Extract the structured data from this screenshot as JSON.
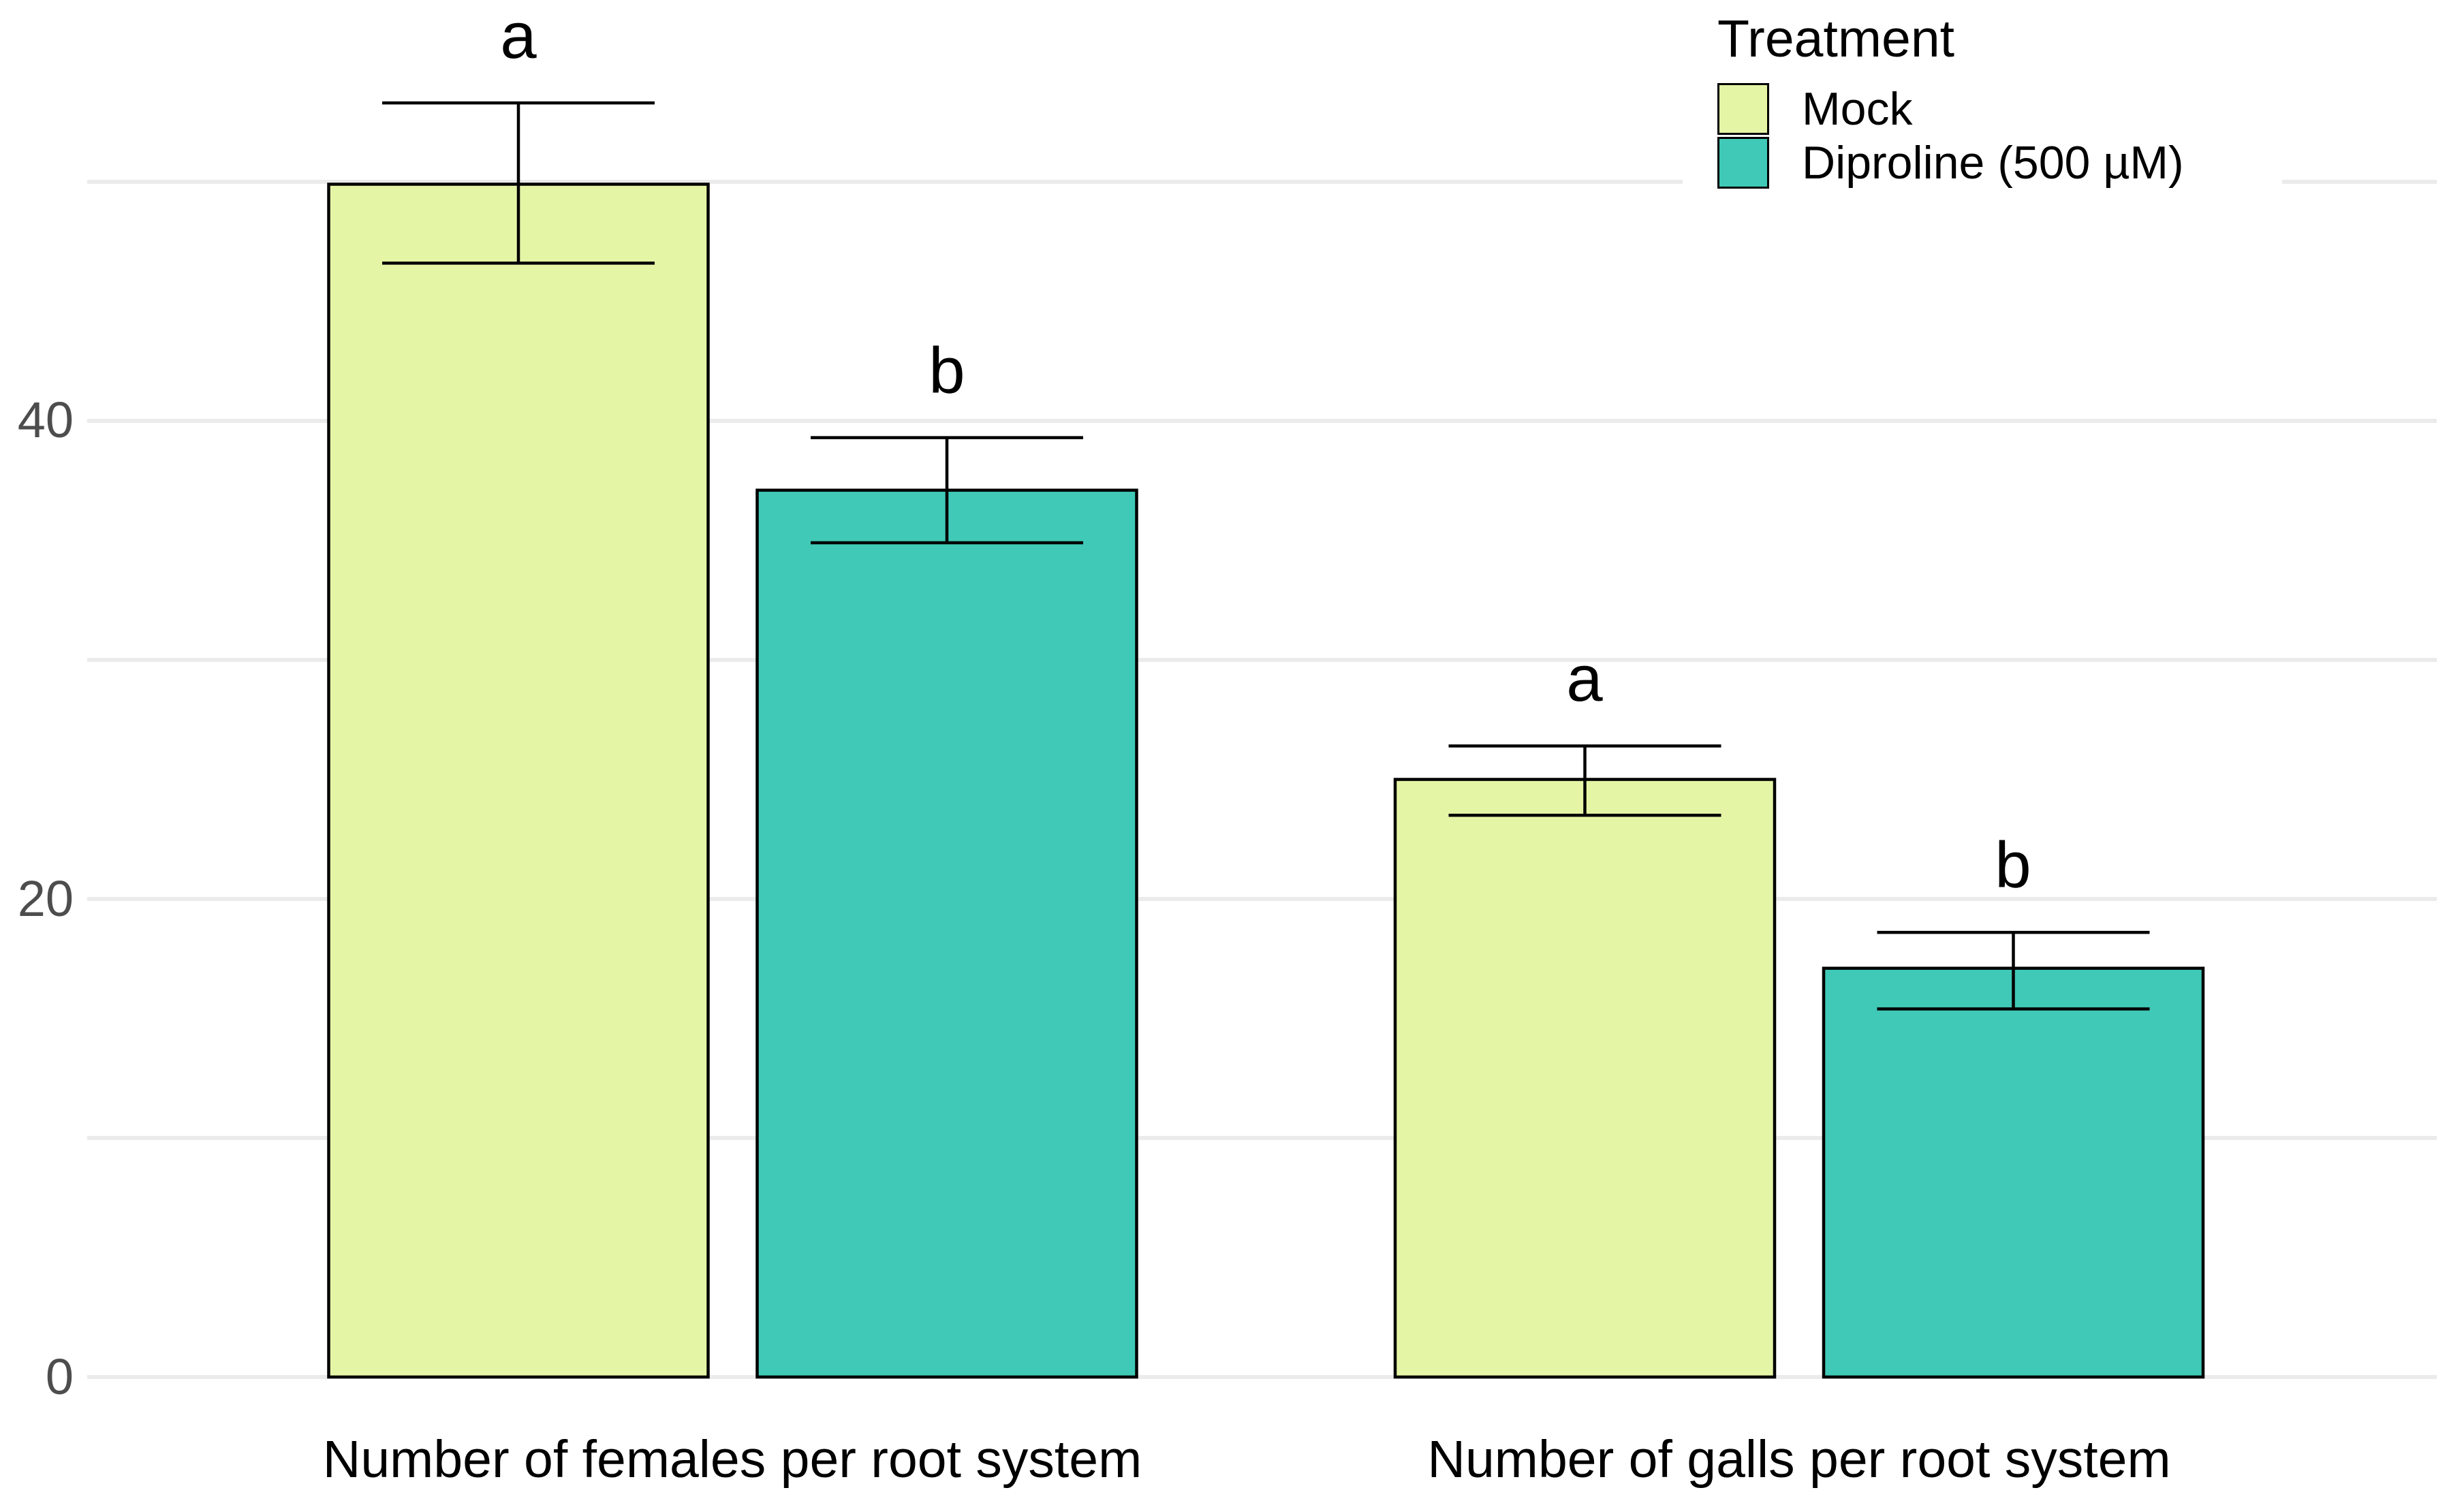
{
  "chart_data": {
    "type": "bar",
    "title": "",
    "xlabel": "",
    "ylabel": "",
    "categories": [
      "Number of females per root system",
      "Number of galls per root system"
    ],
    "series": [
      {
        "name": "Mock",
        "color": "#E5F5A6",
        "values": [
          49.9,
          25.0
        ],
        "error_low": [
          46.6,
          23.5
        ],
        "error_high": [
          53.3,
          26.4
        ],
        "letters": [
          "a",
          "a"
        ]
      },
      {
        "name": "Diproline (500 µM)",
        "color": "#3FC9B6",
        "values": [
          37.1,
          17.1
        ],
        "error_low": [
          34.9,
          15.4
        ],
        "error_high": [
          39.3,
          18.6
        ],
        "letters": [
          "b",
          "b"
        ]
      }
    ],
    "legend_title": "Treatment",
    "legend_position": "top-right-inside",
    "yticks": [
      0,
      20,
      40
    ],
    "gridline_values": [
      0,
      10,
      20,
      30,
      40,
      50
    ],
    "ylim": [
      0,
      57
    ],
    "grid": true,
    "bar_outline_color": "#000000",
    "errorbar_color": "#000000",
    "grid_color": "#EBEBEB",
    "axis_text_color": "#4D4D4D",
    "background_color": "#FFFFFF"
  }
}
